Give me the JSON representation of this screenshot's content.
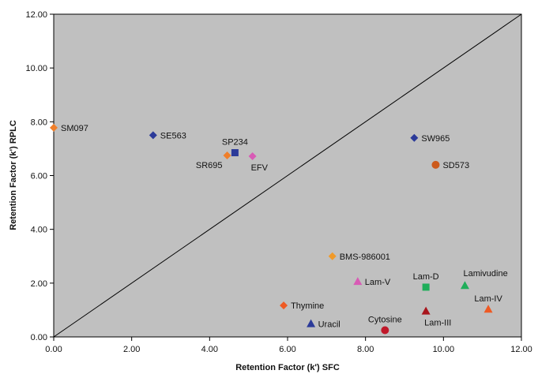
{
  "chart_data": {
    "type": "scatter",
    "xlabel": "Retention  Factor (k') SFC",
    "ylabel": "Retention  Factor (k') RPLC",
    "xlim": [
      0,
      12
    ],
    "ylim": [
      0,
      12
    ],
    "x_ticks": [
      "0.00",
      "2.00",
      "4.00",
      "6.00",
      "8.00",
      "10.00",
      "12.00"
    ],
    "y_ticks": [
      "0.00",
      "2.00",
      "4.00",
      "6.00",
      "8.00",
      "10.00",
      "12.00"
    ],
    "plot_background": "#c0c0c0",
    "reference_line": {
      "from": [
        0,
        0
      ],
      "to": [
        12,
        12
      ]
    },
    "grid": false,
    "legend": "none",
    "points": [
      {
        "label": "SM097",
        "x": 0.0,
        "y": 7.78,
        "marker": "diamond",
        "color": "#f07f2a",
        "label_pos": "right"
      },
      {
        "label": "SE563",
        "x": 2.55,
        "y": 7.5,
        "marker": "diamond",
        "color": "#2b3a99",
        "label_pos": "right"
      },
      {
        "label": "SP234",
        "x": 4.65,
        "y": 6.85,
        "marker": "square",
        "color": "#2b3a99",
        "label_pos": "above"
      },
      {
        "label": "SR695",
        "x": 4.45,
        "y": 6.75,
        "marker": "diamond",
        "color": "#f07f2a",
        "label_pos": "left-below"
      },
      {
        "label": "EFV",
        "x": 5.1,
        "y": 6.72,
        "marker": "diamond",
        "color": "#d85bb5",
        "label_pos": "below-right"
      },
      {
        "label": "SW965",
        "x": 9.25,
        "y": 7.4,
        "marker": "diamond",
        "color": "#2b3a99",
        "label_pos": "right"
      },
      {
        "label": "SD573",
        "x": 9.8,
        "y": 6.4,
        "marker": "circle",
        "color": "#cc5a1c",
        "label_pos": "right"
      },
      {
        "label": "BMS-986001",
        "x": 7.15,
        "y": 3.0,
        "marker": "diamond",
        "color": "#f09a2a",
        "label_pos": "right"
      },
      {
        "label": "Lam-V",
        "x": 7.8,
        "y": 2.05,
        "marker": "triangle",
        "color": "#d85bb5",
        "label_pos": "right"
      },
      {
        "label": "Lam-D",
        "x": 9.55,
        "y": 1.85,
        "marker": "square",
        "color": "#1fae5a",
        "label_pos": "above"
      },
      {
        "label": "Lamivudine",
        "x": 10.55,
        "y": 1.9,
        "marker": "triangle",
        "color": "#1fae5a",
        "label_pos": "above-right"
      },
      {
        "label": "Thymine",
        "x": 5.9,
        "y": 1.17,
        "marker": "diamond",
        "color": "#ee5a24",
        "label_pos": "right"
      },
      {
        "label": "Lam-IV",
        "x": 11.15,
        "y": 1.02,
        "marker": "triangle",
        "color": "#ee5a24",
        "label_pos": "above"
      },
      {
        "label": "Lam-III",
        "x": 9.55,
        "y": 0.95,
        "marker": "triangle",
        "color": "#a8151c",
        "label_pos": "below-right"
      },
      {
        "label": "Uracil",
        "x": 6.6,
        "y": 0.48,
        "marker": "triangle",
        "color": "#2b3a99",
        "label_pos": "right"
      },
      {
        "label": "Cytosine",
        "x": 8.5,
        "y": 0.25,
        "marker": "circle",
        "color": "#c0182a",
        "label_pos": "above"
      }
    ]
  }
}
